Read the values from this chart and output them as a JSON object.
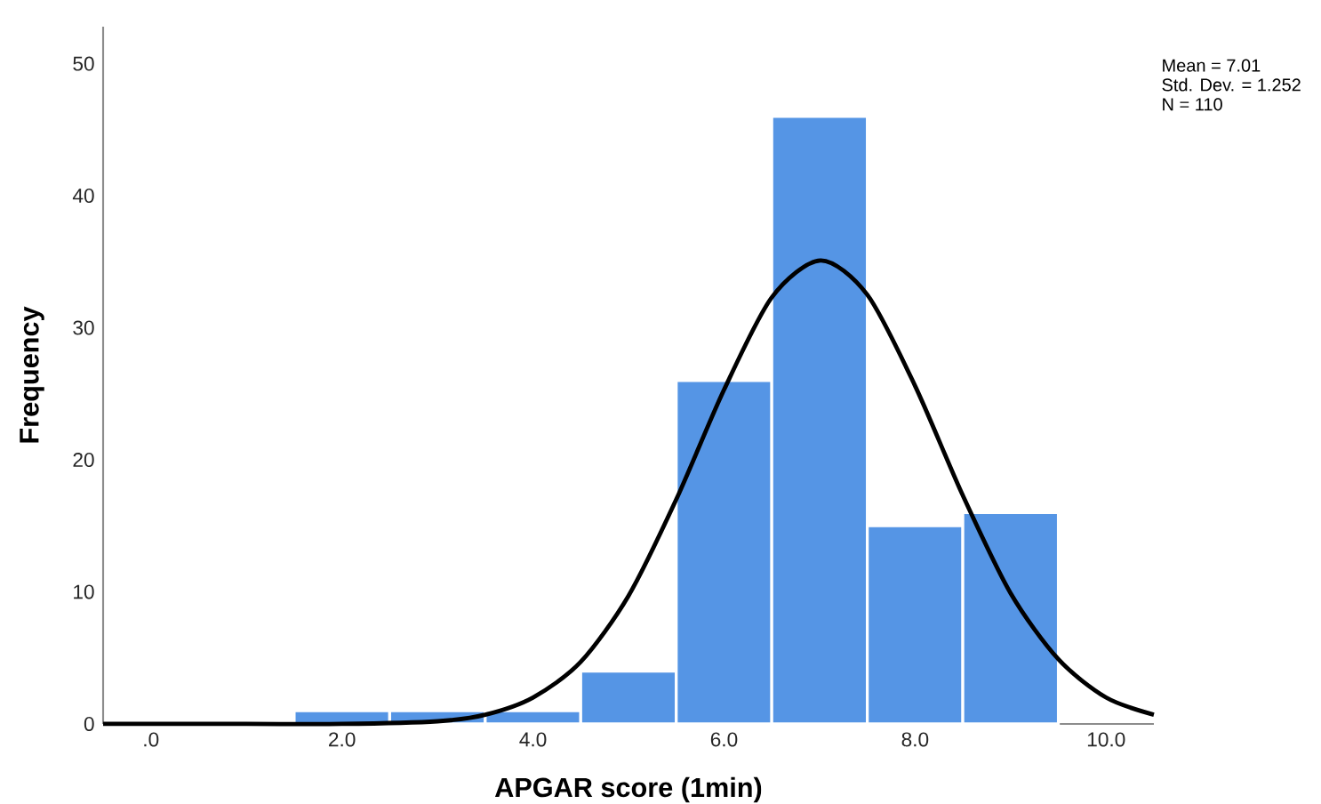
{
  "chart_data": {
    "type": "histogram",
    "xlabel": "APGAR score (1min)",
    "ylabel": "Frequency",
    "bins": [
      1.5,
      2.5,
      3.5,
      4.5,
      5.5,
      6.5,
      7.5,
      8.5,
      9.5
    ],
    "values": [
      1,
      1,
      1,
      4,
      26,
      46,
      15,
      16
    ],
    "color": "#5595e5",
    "series": [
      {
        "type": "line",
        "color": "#000000",
        "x": [
          -0.5,
          1,
          2,
          3,
          3.5,
          4,
          4.5,
          5,
          5.5,
          6,
          6.5,
          7.01,
          7.5,
          8,
          8.5,
          9,
          9.5,
          10,
          10.5
        ],
        "values": [
          0,
          0,
          0,
          0.2,
          0.7,
          2.0,
          4.7,
          9.7,
          17.0,
          25.3,
          32.3,
          35.1,
          32.5,
          25.6,
          17.3,
          9.9,
          4.9,
          2.0,
          0.7
        ]
      }
    ],
    "xlim": [
      -0.5,
      10.5
    ],
    "ylim": [
      0,
      52.8
    ],
    "xticks": [
      {
        "value": 0,
        "label": ".0"
      },
      {
        "value": 2,
        "label": "2.0"
      },
      {
        "value": 4,
        "label": "4.0"
      },
      {
        "value": 6,
        "label": "6.0"
      },
      {
        "value": 8,
        "label": "8.0"
      },
      {
        "value": 10,
        "label": "10.0"
      }
    ],
    "yticks": [
      0,
      10,
      20,
      30,
      40,
      50
    ],
    "grid": false,
    "annotations": [
      "Mean = 7.01",
      "Std. Dev. = 1.252",
      "N = 110"
    ]
  }
}
